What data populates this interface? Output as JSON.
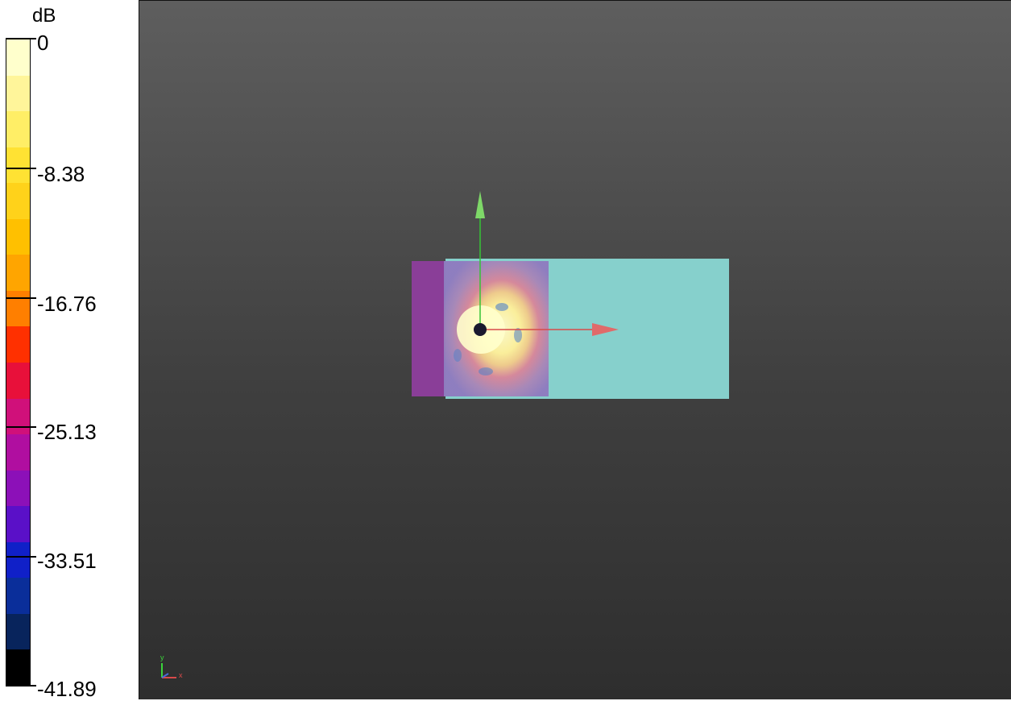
{
  "colorbar": {
    "unit": "dB",
    "ticks": [
      "0",
      "-8.38",
      "-16.76",
      "-25.13",
      "-33.51",
      "-41.89"
    ],
    "colors": [
      "#ffffcc",
      "#fff59a",
      "#ffee66",
      "#ffe233",
      "#ffd21a",
      "#ffc000",
      "#ffa500",
      "#ff7f00",
      "#ff3000",
      "#e8103a",
      "#d0107a",
      "#b00ea0",
      "#8c10b8",
      "#5a10c8",
      "#1020c8",
      "#0a2e9a",
      "#08245c",
      "#000000"
    ]
  },
  "viewport": {
    "axes_triad": {
      "x_label": "x",
      "y_label": "y"
    }
  }
}
